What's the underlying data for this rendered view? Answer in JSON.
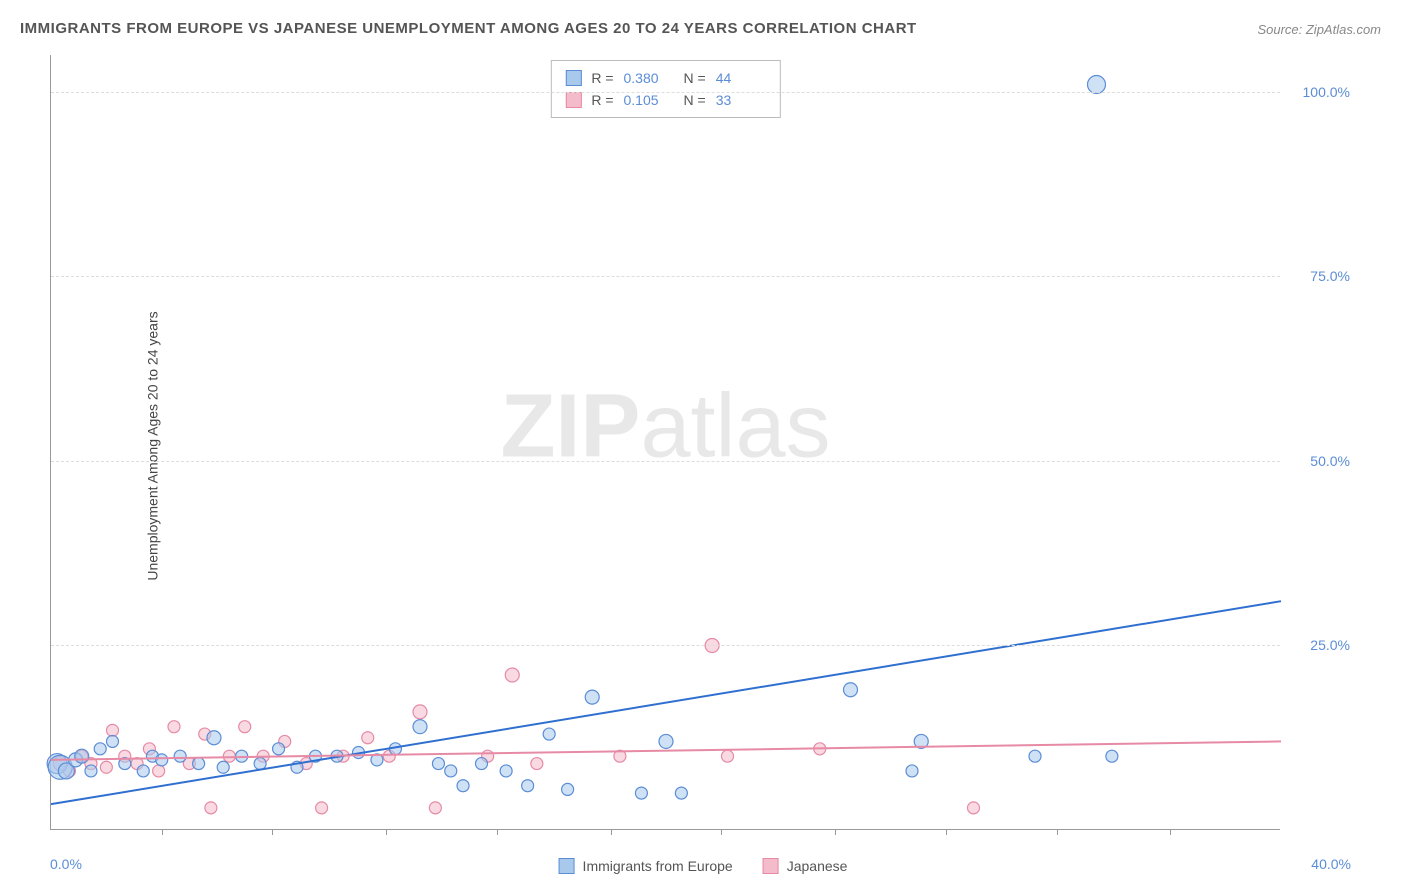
{
  "title": "IMMIGRANTS FROM EUROPE VS JAPANESE UNEMPLOYMENT AMONG AGES 20 TO 24 YEARS CORRELATION CHART",
  "source": "Source: ZipAtlas.com",
  "ylabel": "Unemployment Among Ages 20 to 24 years",
  "watermark_bold": "ZIP",
  "watermark_light": "atlas",
  "chart": {
    "type": "scatter",
    "xlim": [
      0,
      40
    ],
    "ylim": [
      0,
      105
    ],
    "x_axis_labels": {
      "min": "0.0%",
      "max": "40.0%"
    },
    "y_ticks": [
      {
        "v": 25,
        "label": "25.0%"
      },
      {
        "v": 50,
        "label": "50.0%"
      },
      {
        "v": 75,
        "label": "75.0%"
      },
      {
        "v": 100,
        "label": "100.0%"
      }
    ],
    "x_minor_ticks": [
      3.6,
      7.2,
      10.9,
      14.5,
      18.2,
      21.8,
      25.5,
      29.1,
      32.7,
      36.4
    ],
    "background_color": "#ffffff",
    "grid_color": "#dddddd",
    "axis_color": "#999999",
    "ytick_label_color": "#5b8dd6",
    "series": [
      {
        "name": "Immigrants from Europe",
        "fill": "#a8c8ec",
        "stroke": "#5b8dd6",
        "fill_opacity": 0.55,
        "R": "0.380",
        "N": "44",
        "trend": {
          "x1": 0,
          "y1": 3.5,
          "x2": 40,
          "y2": 31,
          "color": "#2f6fd0",
          "width": 2
        },
        "points": [
          {
            "x": 0.2,
            "y": 9,
            "r": 10
          },
          {
            "x": 0.3,
            "y": 8.5,
            "r": 12
          },
          {
            "x": 0.5,
            "y": 8,
            "r": 8
          },
          {
            "x": 0.8,
            "y": 9.5,
            "r": 7
          },
          {
            "x": 1.0,
            "y": 10,
            "r": 7
          },
          {
            "x": 1.3,
            "y": 8,
            "r": 6
          },
          {
            "x": 1.6,
            "y": 11,
            "r": 6
          },
          {
            "x": 2.0,
            "y": 12,
            "r": 6
          },
          {
            "x": 2.4,
            "y": 9,
            "r": 6
          },
          {
            "x": 3.0,
            "y": 8,
            "r": 6
          },
          {
            "x": 3.3,
            "y": 10,
            "r": 6
          },
          {
            "x": 3.6,
            "y": 9.5,
            "r": 6
          },
          {
            "x": 4.2,
            "y": 10,
            "r": 6
          },
          {
            "x": 4.8,
            "y": 9,
            "r": 6
          },
          {
            "x": 5.3,
            "y": 12.5,
            "r": 7
          },
          {
            "x": 5.6,
            "y": 8.5,
            "r": 6
          },
          {
            "x": 6.2,
            "y": 10,
            "r": 6
          },
          {
            "x": 6.8,
            "y": 9,
            "r": 6
          },
          {
            "x": 7.4,
            "y": 11,
            "r": 6
          },
          {
            "x": 8.0,
            "y": 8.5,
            "r": 6
          },
          {
            "x": 8.6,
            "y": 10,
            "r": 6
          },
          {
            "x": 9.3,
            "y": 10,
            "r": 6
          },
          {
            "x": 10.0,
            "y": 10.5,
            "r": 6
          },
          {
            "x": 10.6,
            "y": 9.5,
            "r": 6
          },
          {
            "x": 11.2,
            "y": 11,
            "r": 6
          },
          {
            "x": 12.0,
            "y": 14,
            "r": 7
          },
          {
            "x": 12.6,
            "y": 9,
            "r": 6
          },
          {
            "x": 13.0,
            "y": 8,
            "r": 6
          },
          {
            "x": 13.4,
            "y": 6,
            "r": 6
          },
          {
            "x": 14.0,
            "y": 9,
            "r": 6
          },
          {
            "x": 14.8,
            "y": 8,
            "r": 6
          },
          {
            "x": 15.5,
            "y": 6,
            "r": 6
          },
          {
            "x": 16.2,
            "y": 13,
            "r": 6
          },
          {
            "x": 16.8,
            "y": 5.5,
            "r": 6
          },
          {
            "x": 17.6,
            "y": 18,
            "r": 7
          },
          {
            "x": 19.2,
            "y": 5,
            "r": 6
          },
          {
            "x": 20.0,
            "y": 12,
            "r": 7
          },
          {
            "x": 20.5,
            "y": 5,
            "r": 6
          },
          {
            "x": 26.0,
            "y": 19,
            "r": 7
          },
          {
            "x": 28.0,
            "y": 8,
            "r": 6
          },
          {
            "x": 28.3,
            "y": 12,
            "r": 7
          },
          {
            "x": 32.0,
            "y": 10,
            "r": 6
          },
          {
            "x": 34.5,
            "y": 10,
            "r": 6
          },
          {
            "x": 34.0,
            "y": 101,
            "r": 9
          }
        ]
      },
      {
        "name": "Japanese",
        "fill": "#f4bccb",
        "stroke": "#e68aa5",
        "fill_opacity": 0.55,
        "R": "0.105",
        "N": "33",
        "trend": {
          "x1": 0,
          "y1": 9.5,
          "x2": 40,
          "y2": 12,
          "color": "#e68aa5",
          "width": 2
        },
        "points": [
          {
            "x": 0.3,
            "y": 9,
            "r": 7
          },
          {
            "x": 0.6,
            "y": 8,
            "r": 6
          },
          {
            "x": 1.0,
            "y": 10,
            "r": 6
          },
          {
            "x": 1.3,
            "y": 9,
            "r": 6
          },
          {
            "x": 1.8,
            "y": 8.5,
            "r": 6
          },
          {
            "x": 2.0,
            "y": 13.5,
            "r": 6
          },
          {
            "x": 2.4,
            "y": 10,
            "r": 6
          },
          {
            "x": 2.8,
            "y": 9,
            "r": 6
          },
          {
            "x": 3.2,
            "y": 11,
            "r": 6
          },
          {
            "x": 3.5,
            "y": 8,
            "r": 6
          },
          {
            "x": 4.0,
            "y": 14,
            "r": 6
          },
          {
            "x": 4.5,
            "y": 9,
            "r": 6
          },
          {
            "x": 5.0,
            "y": 13,
            "r": 6
          },
          {
            "x": 5.2,
            "y": 3,
            "r": 6
          },
          {
            "x": 5.8,
            "y": 10,
            "r": 6
          },
          {
            "x": 6.3,
            "y": 14,
            "r": 6
          },
          {
            "x": 6.9,
            "y": 10,
            "r": 6
          },
          {
            "x": 7.6,
            "y": 12,
            "r": 6
          },
          {
            "x": 8.3,
            "y": 9,
            "r": 6
          },
          {
            "x": 8.8,
            "y": 3,
            "r": 6
          },
          {
            "x": 9.5,
            "y": 10,
            "r": 6
          },
          {
            "x": 10.3,
            "y": 12.5,
            "r": 6
          },
          {
            "x": 11.0,
            "y": 10,
            "r": 6
          },
          {
            "x": 12.0,
            "y": 16,
            "r": 7
          },
          {
            "x": 12.5,
            "y": 3,
            "r": 6
          },
          {
            "x": 14.2,
            "y": 10,
            "r": 6
          },
          {
            "x": 15.0,
            "y": 21,
            "r": 7
          },
          {
            "x": 15.8,
            "y": 9,
            "r": 6
          },
          {
            "x": 18.5,
            "y": 10,
            "r": 6
          },
          {
            "x": 21.5,
            "y": 25,
            "r": 7
          },
          {
            "x": 22.0,
            "y": 10,
            "r": 6
          },
          {
            "x": 25.0,
            "y": 11,
            "r": 6
          },
          {
            "x": 30.0,
            "y": 3,
            "r": 6
          }
        ]
      }
    ]
  },
  "legend_bottom": [
    {
      "label": "Immigrants from Europe",
      "fill": "#a8c8ec",
      "stroke": "#5b8dd6"
    },
    {
      "label": "Japanese",
      "fill": "#f4bccb",
      "stroke": "#e68aa5"
    }
  ]
}
